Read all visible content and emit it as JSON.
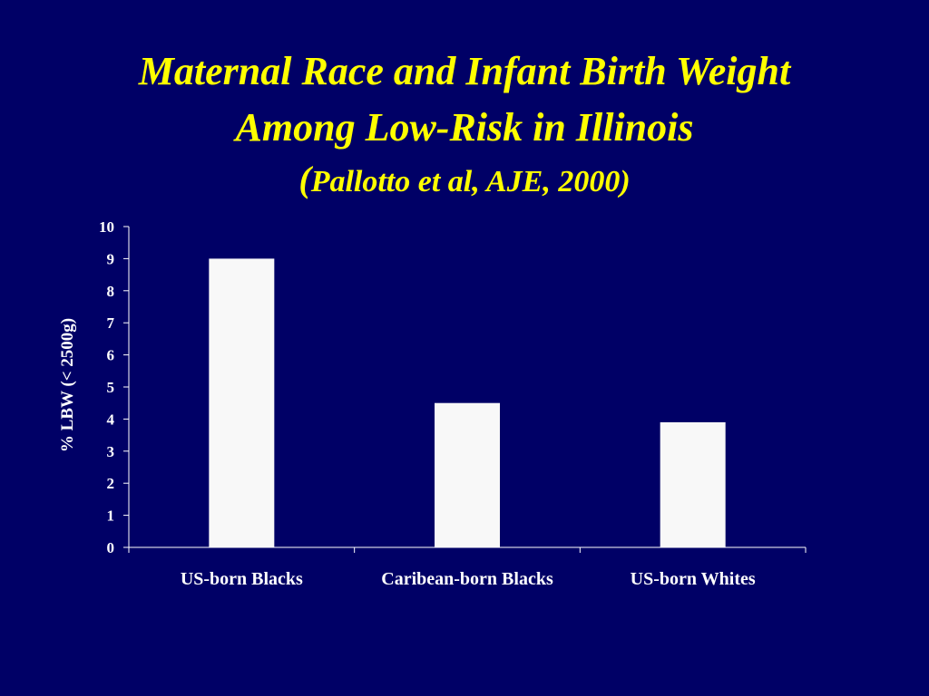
{
  "slide": {
    "title_line1": "Maternal Race and Infant Birth Weight",
    "title_line2": "Among Low-Risk in Illinois",
    "subtitle_open_paren": "(",
    "subtitle_text": "Pallotto et al, AJE, 2000)",
    "background_color": "#000066",
    "title_color": "#FFFF00"
  },
  "chart_data": {
    "type": "bar",
    "categories": [
      "US-born Blacks",
      "Caribean-born Blacks",
      "US-born Whites"
    ],
    "values": [
      9,
      4.5,
      3.9
    ],
    "title": "Maternal Race and Infant Birth Weight Among Low-Risk in Illinois (Pallotto et al, AJE, 2000)",
    "xlabel": "",
    "ylabel": "% LBW (< 2500g)",
    "ylim": [
      0,
      10
    ],
    "yticks": [
      "0",
      "1",
      "2",
      "3",
      "4",
      "5",
      "6",
      "7",
      "8",
      "9",
      "10"
    ],
    "grid": false,
    "legend": "none",
    "bar_color": "#F8F8F8",
    "axis_color": "#FFFFFF"
  }
}
